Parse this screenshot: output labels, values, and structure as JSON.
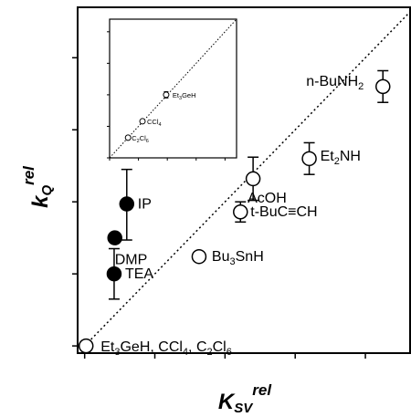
{
  "chart_data": [
    {
      "type": "scatter",
      "xlabel": "K",
      "xlabel_sub": "SV",
      "xlabel_sup": "rel",
      "ylabel": "k",
      "ylabel_sub": "Q",
      "ylabel_sup": "rel",
      "xlim": [
        -10,
        465
      ],
      "ylim": [
        -10,
        470
      ],
      "xticks": [
        0,
        100,
        200,
        300,
        400
      ],
      "yticks": [
        0,
        100,
        200,
        300,
        400
      ],
      "grid": false,
      "reference_line": {
        "style": "dotted",
        "slope": 1,
        "from": [
          0,
          0
        ],
        "to": [
          465,
          465
        ]
      },
      "series": [
        {
          "marker": "filled-circle",
          "points": [
            {
              "x": 60,
              "y": 197,
              "err_low": 50,
              "err_high": 48,
              "label": "IP"
            },
            {
              "x": 43,
              "y": 150,
              "label": "DMP"
            },
            {
              "x": 42,
              "y": 100,
              "err_low": 35,
              "err_high": 35,
              "label": "TEA"
            }
          ]
        },
        {
          "marker": "open-circle",
          "points": [
            {
              "x": 425,
              "y": 360,
              "err_low": 22,
              "err_high": 22,
              "label": "n-BuNH",
              "label_sub": "2"
            },
            {
              "x": 320,
              "y": 260,
              "err_low": 22,
              "err_high": 22,
              "label": "Et",
              "label_sub": "2",
              "label_tail": "NH"
            },
            {
              "x": 240,
              "y": 232,
              "err_low": 30,
              "err_high": 30,
              "label": "AcOH"
            },
            {
              "x": 222,
              "y": 186,
              "err_low": 14,
              "err_high": 14,
              "label": "t-BuC≡CH"
            },
            {
              "x": 163,
              "y": 124,
              "label": "Bu",
              "label_sub": "3",
              "label_tail": "SnH"
            },
            {
              "x": 2,
              "y": 0,
              "label_parts": [
                {
                  "t": "Et"
                },
                {
                  "t": "3",
                  "sub": true
                },
                {
                  "t": "GeH, CCl"
                },
                {
                  "t": "4",
                  "sub": true
                },
                {
                  "t": ", C"
                },
                {
                  "t": "2",
                  "sub": true
                },
                {
                  "t": "Cl"
                },
                {
                  "t": "6",
                  "sub": true
                }
              ]
            }
          ]
        }
      ]
    },
    {
      "type": "scatter",
      "role": "inset",
      "xlim": [
        0,
        2.2
      ],
      "ylim": [
        0,
        2.2
      ],
      "xticks": [
        "0.0",
        "0.5",
        "1.0",
        "1.5",
        "2.0"
      ],
      "yticks": [
        "0.0",
        "0.5",
        "1.0",
        "1.5",
        "2.0"
      ],
      "reference_line": {
        "style": "dotted",
        "slope": 1
      },
      "series": [
        {
          "marker": "open-circle",
          "points": [
            {
              "x": 0.98,
              "y": 1.0,
              "err_low": 0.05,
              "err_high": 0.05,
              "label_parts": [
                {
                  "t": "Et"
                },
                {
                  "t": "3",
                  "sub": true
                },
                {
                  "t": "GeH"
                }
              ]
            },
            {
              "x": 0.57,
              "y": 0.58,
              "label_parts": [
                {
                  "t": "CCl"
                },
                {
                  "t": "4",
                  "sub": true
                }
              ]
            },
            {
              "x": 0.32,
              "y": 0.32,
              "label_parts": [
                {
                  "t": "C"
                },
                {
                  "t": "2",
                  "sub": true
                },
                {
                  "t": "Cl"
                },
                {
                  "t": "6",
                  "sub": true
                }
              ]
            }
          ]
        }
      ]
    }
  ]
}
